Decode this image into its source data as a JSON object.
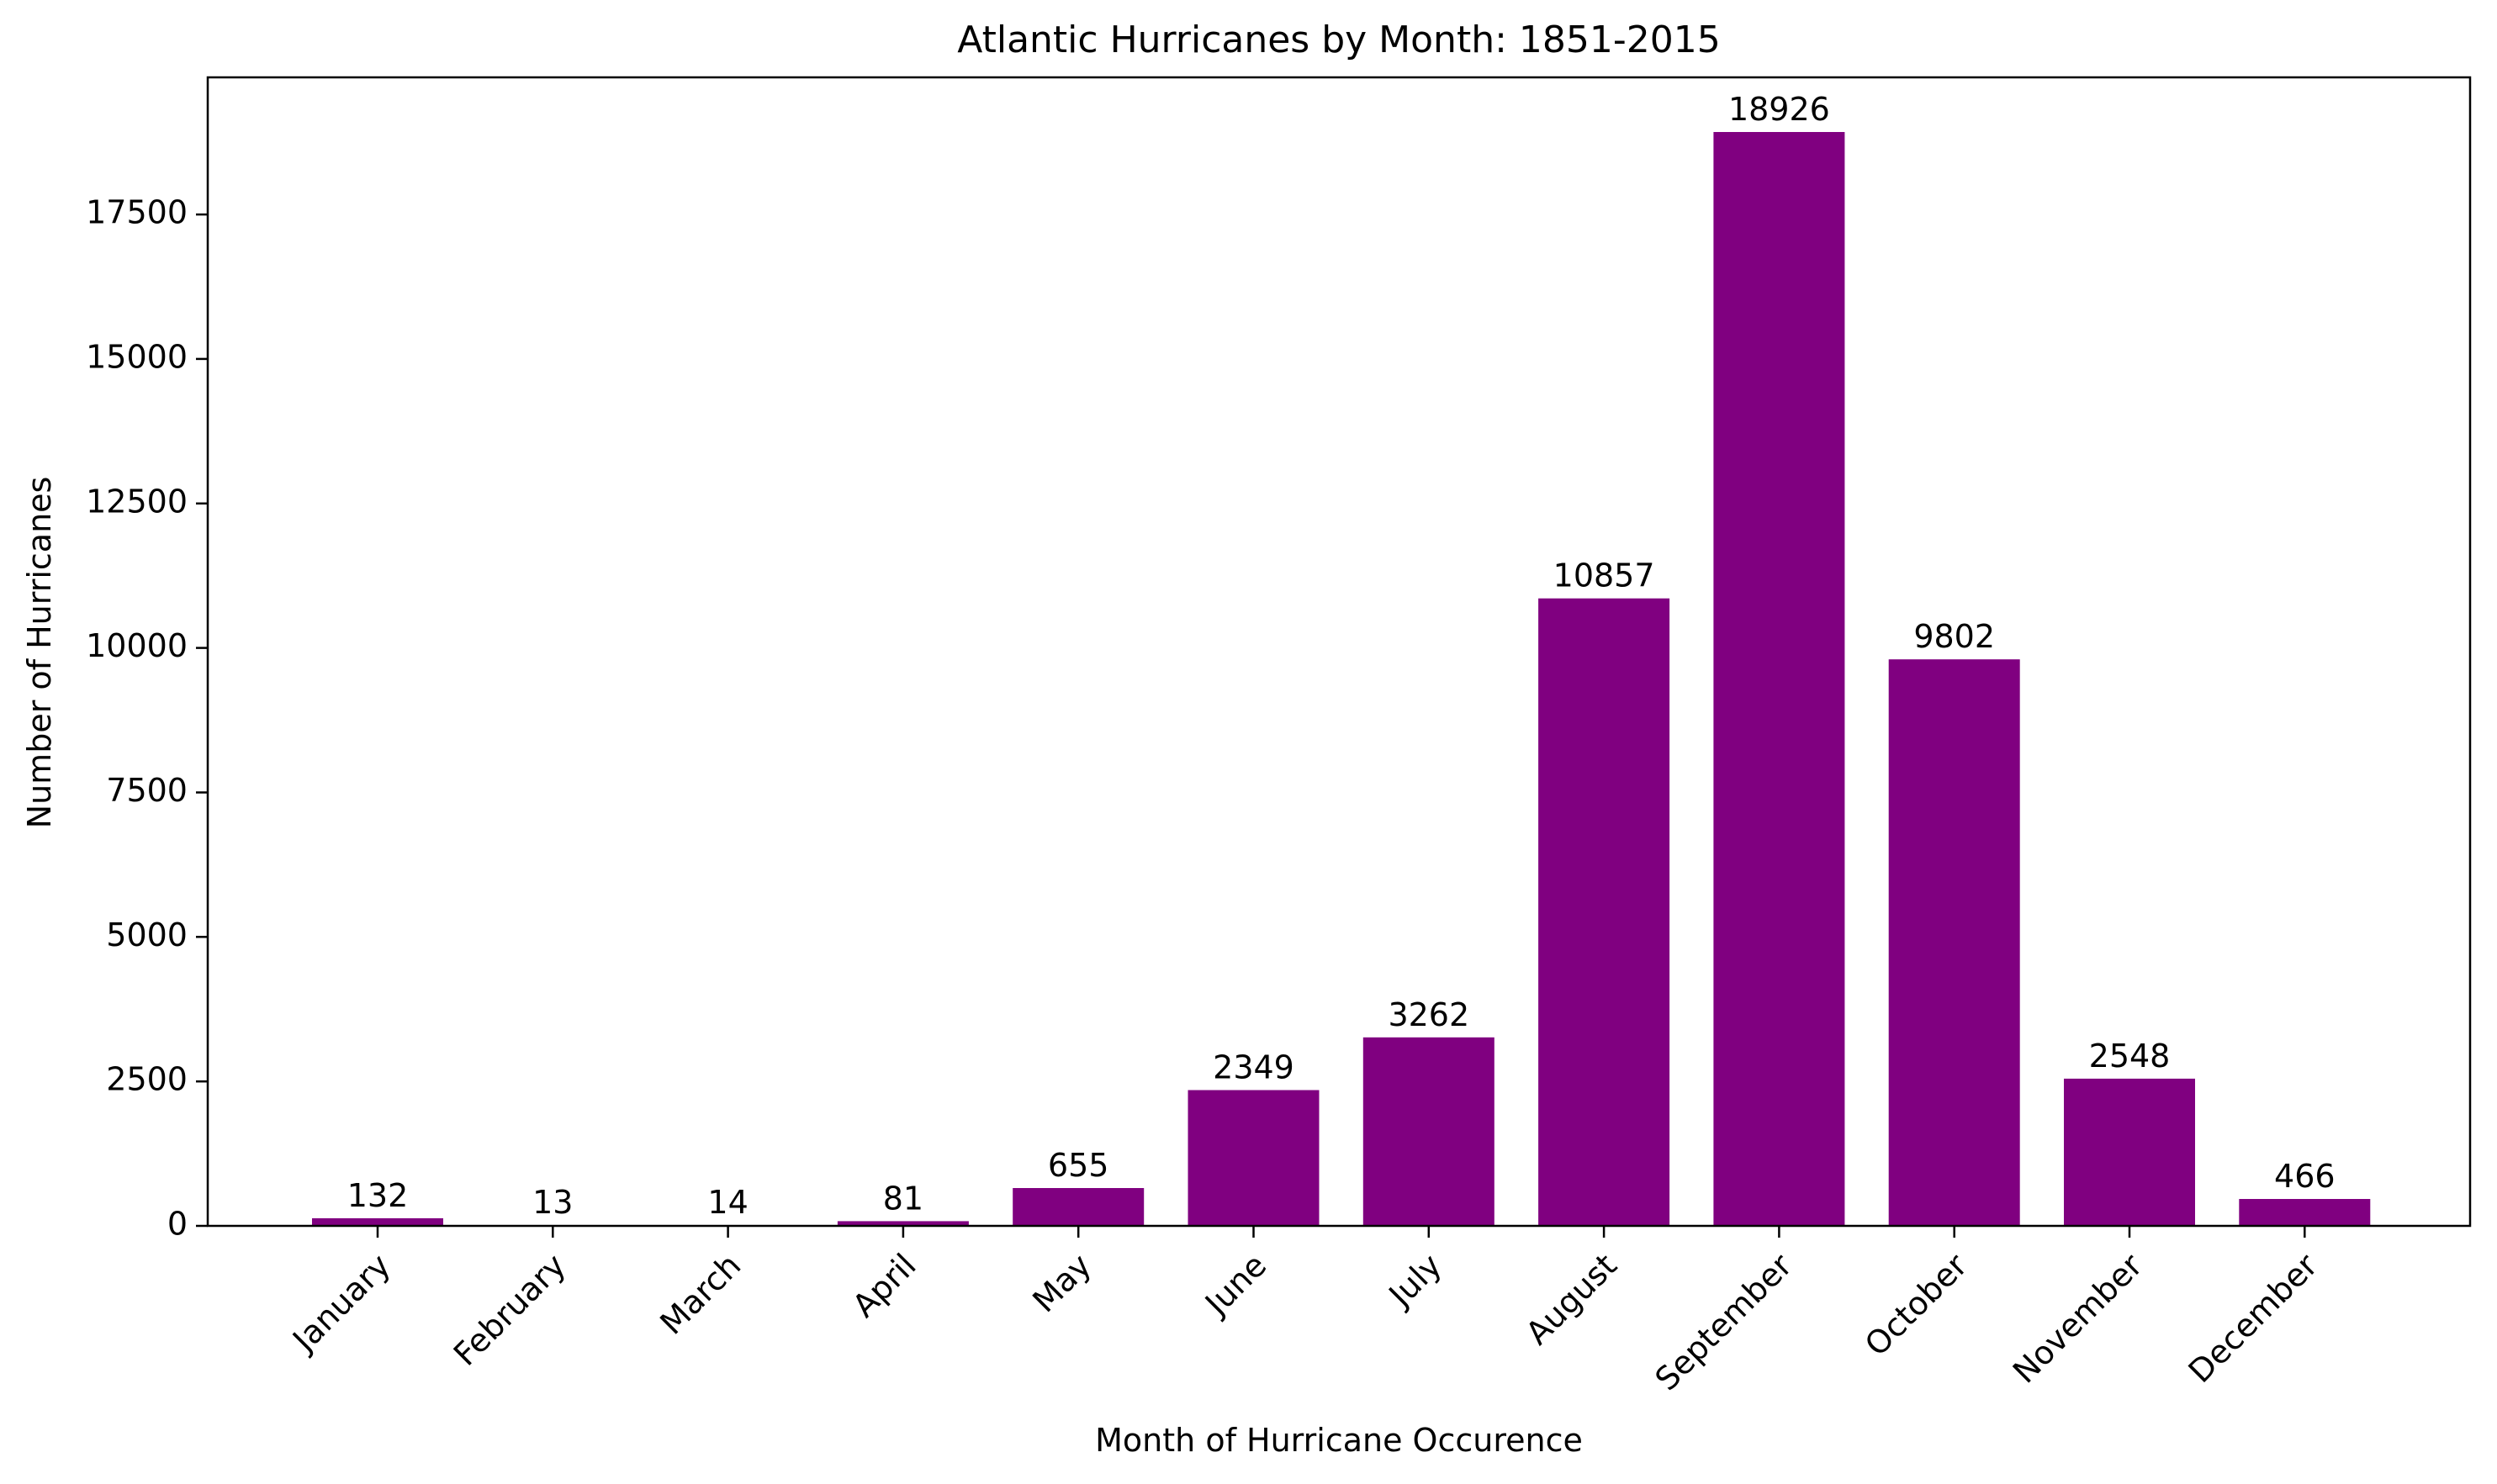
{
  "chart_data": {
    "type": "bar",
    "title": "Atlantic Hurricanes by Month: 1851-2015",
    "xlabel": "Month of Hurricane Occurence",
    "ylabel": "Number of Hurricanes",
    "categories": [
      "January",
      "February",
      "March",
      "April",
      "May",
      "June",
      "July",
      "August",
      "September",
      "October",
      "November",
      "December"
    ],
    "values": [
      132,
      13,
      14,
      81,
      655,
      2349,
      3262,
      10857,
      18926,
      9802,
      2548,
      466
    ],
    "data_labels": [
      "132",
      "13",
      "14",
      "81",
      "655",
      "2349",
      "3262",
      "10857",
      "18926",
      "9802",
      "2548",
      "466"
    ],
    "ylim": [
      0,
      19872
    ],
    "yticks": [
      0,
      2500,
      5000,
      7500,
      10000,
      12500,
      15000,
      17500
    ],
    "ytick_labels": [
      "0",
      "2500",
      "5000",
      "7500",
      "10000",
      "12500",
      "15000",
      "17500"
    ],
    "bar_color": "#800080",
    "grid": false,
    "legend": "none",
    "x_tick_rotation_deg": 45
  }
}
